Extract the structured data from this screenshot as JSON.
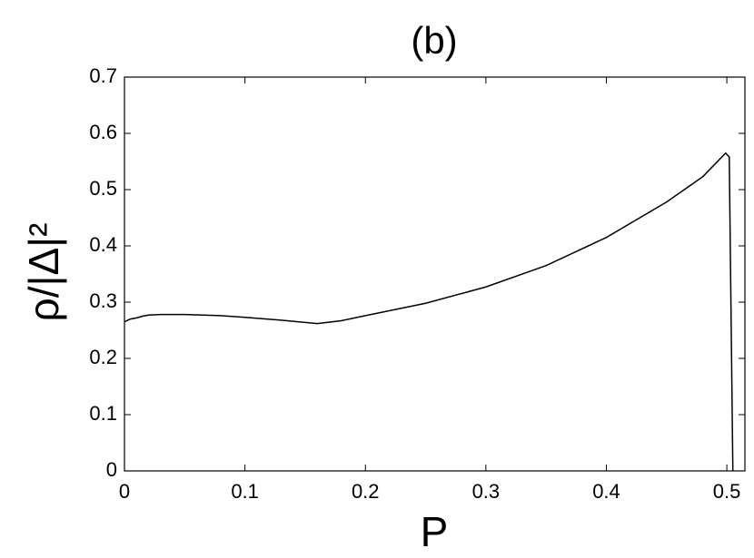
{
  "chart_data": {
    "type": "line",
    "title": "(b)",
    "x_label": "P",
    "y_label": "ρ/|Δ|²",
    "x": [
      0,
      0.005,
      0.01,
      0.015,
      0.02,
      0.03,
      0.05,
      0.08,
      0.1,
      0.13,
      0.16,
      0.18,
      0.2,
      0.25,
      0.3,
      0.35,
      0.4,
      0.45,
      0.48,
      0.499,
      0.502,
      0.505
    ],
    "series": [
      {
        "color": "#000000",
        "values": [
          0.265,
          0.27,
          0.272,
          0.275,
          0.277,
          0.278,
          0.278,
          0.276,
          0.273,
          0.268,
          0.262,
          0.267,
          0.276,
          0.298,
          0.327,
          0.365,
          0.415,
          0.478,
          0.523,
          0.565,
          0.558,
          0
        ]
      }
    ],
    "xlim": [
      0,
      0.515
    ],
    "ylim": [
      0,
      0.7
    ],
    "xticks": [
      0,
      0.1,
      0.2,
      0.3,
      0.4,
      0.5
    ],
    "yticks": [
      0,
      0.1,
      0.2,
      0.3,
      0.4,
      0.5,
      0.6,
      0.7
    ],
    "grid": false
  }
}
